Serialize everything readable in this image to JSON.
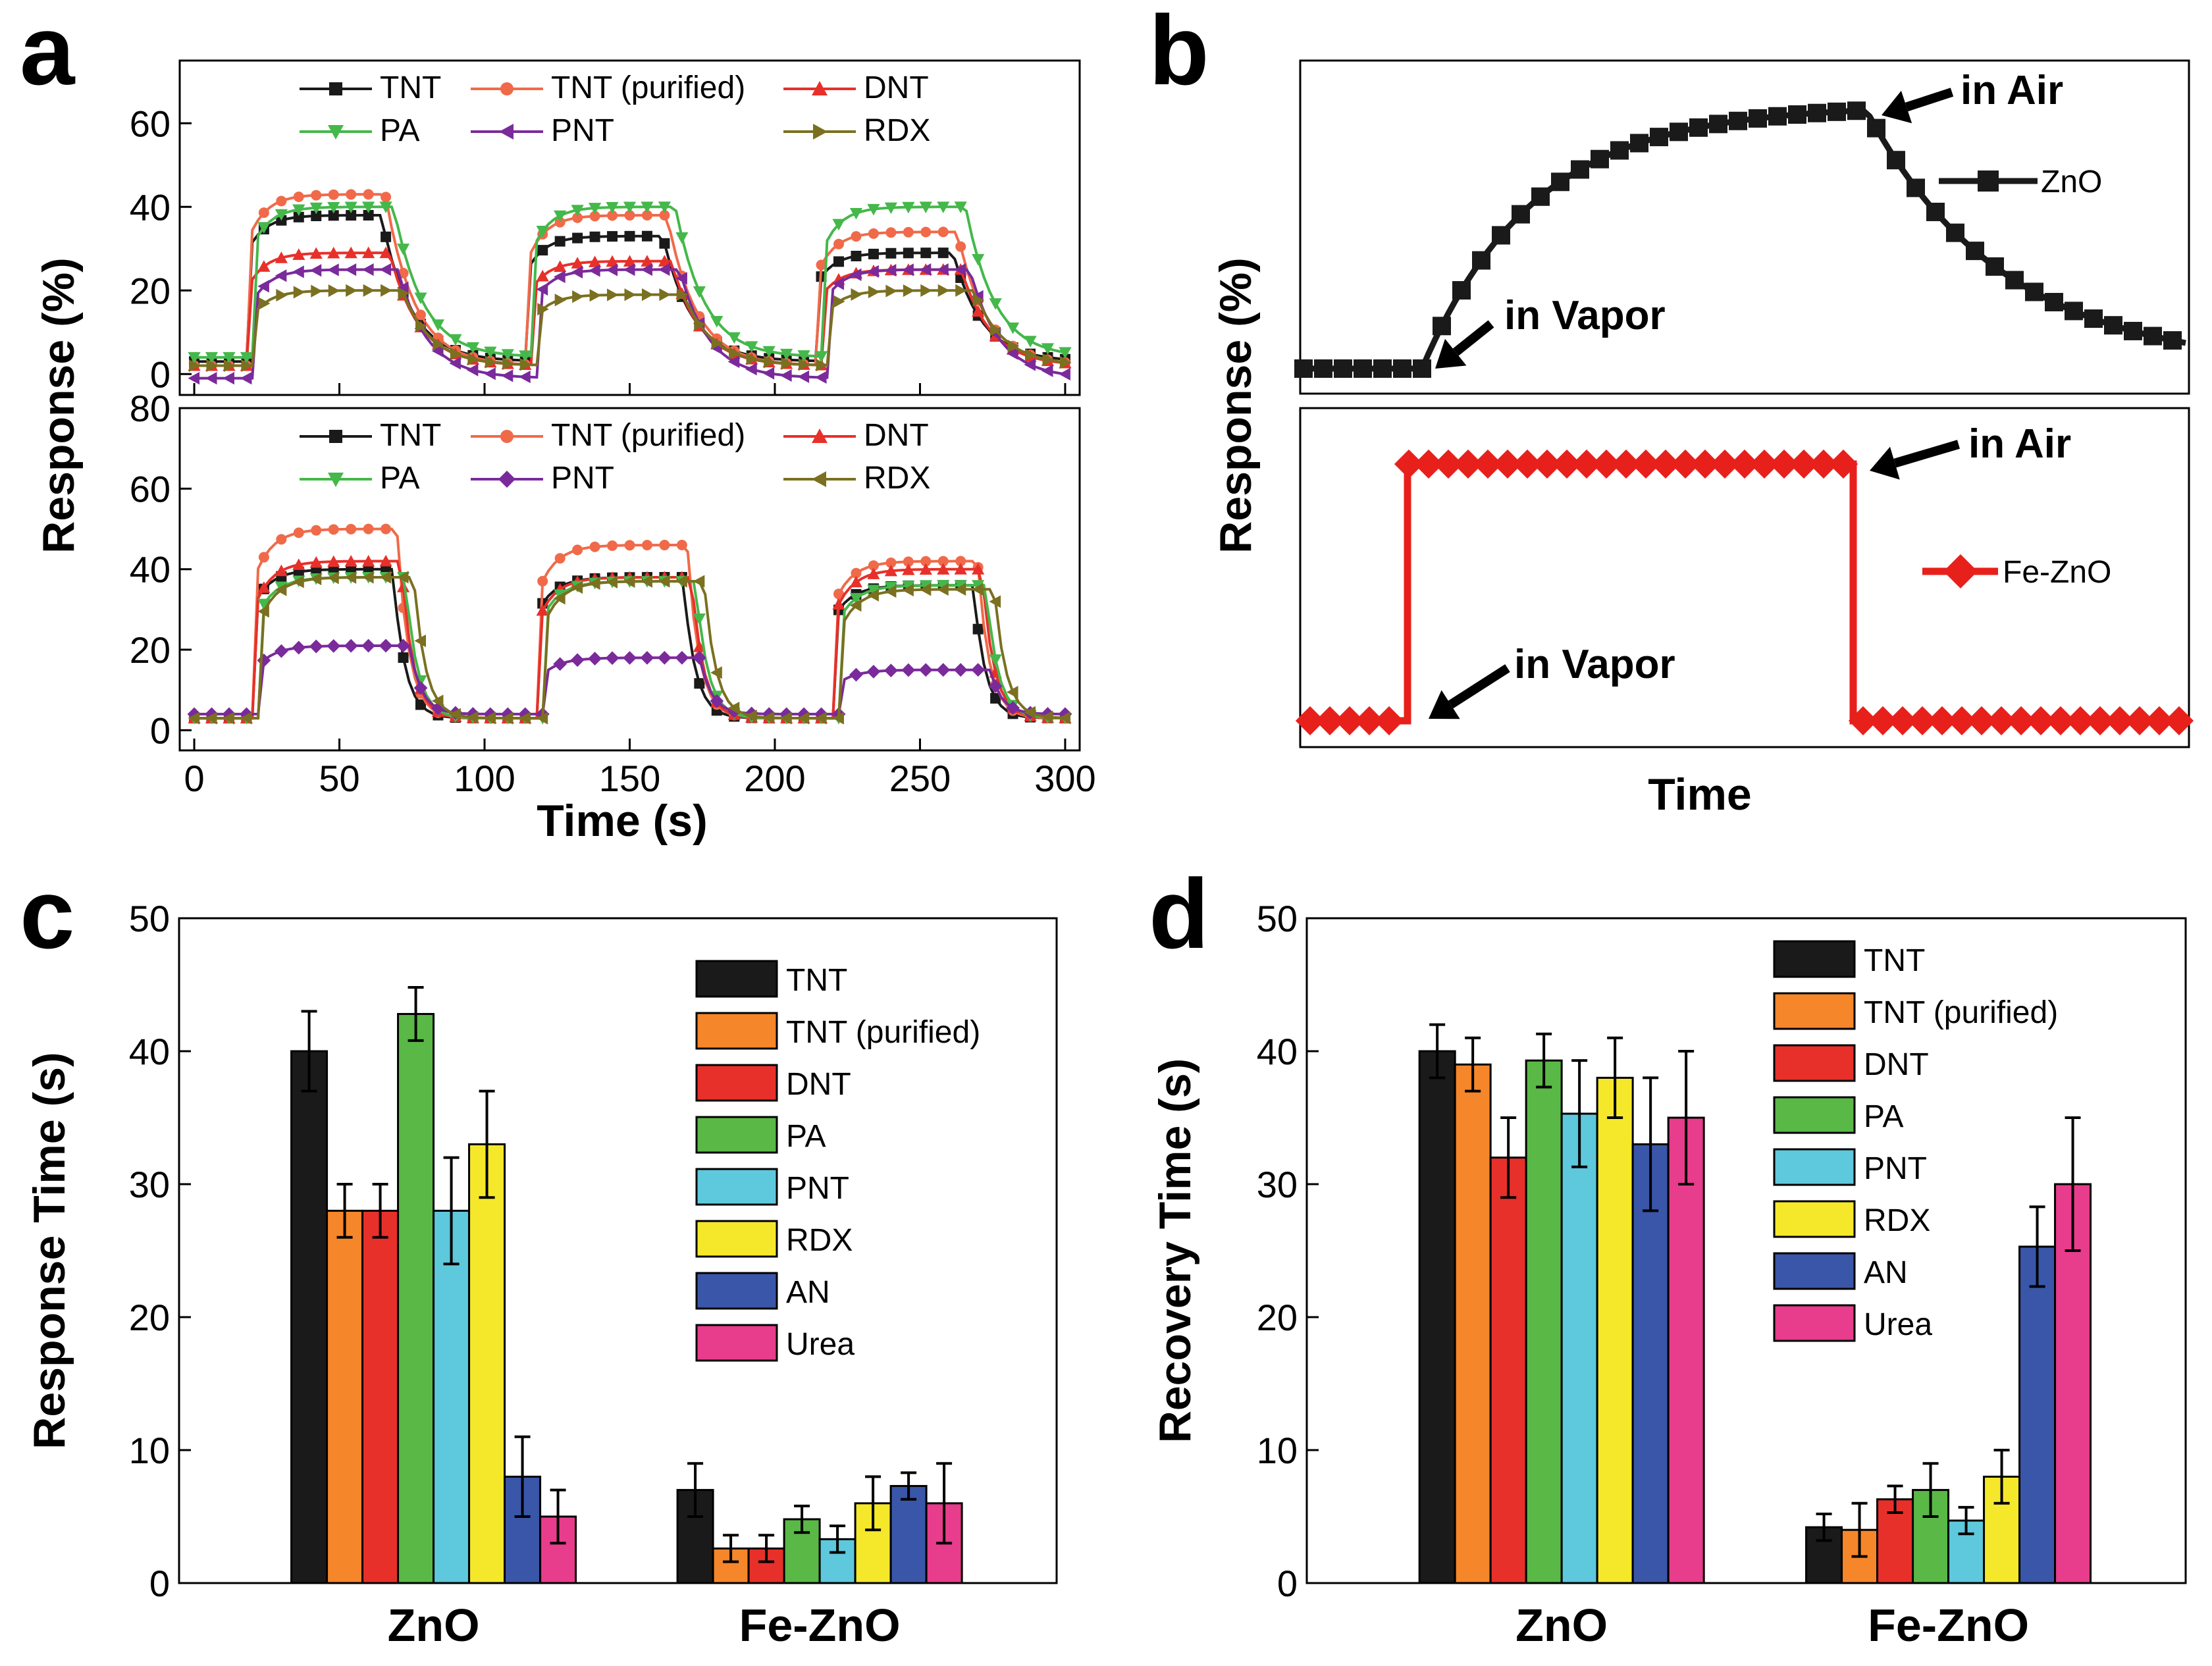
{
  "chart_data": [
    {
      "panel": "a",
      "type": "line",
      "subplot": "top",
      "xlabel": "Time (s)",
      "ylabel": "Response (%)",
      "xlim": [
        -5,
        305
      ],
      "ylim": [
        -5,
        75
      ],
      "yticks": [
        0,
        20,
        40,
        60
      ],
      "xticks": [
        0,
        50,
        100,
        150,
        200,
        250,
        300
      ],
      "exposure_windows": [
        [
          20,
          68
        ],
        [
          117,
          165
        ],
        [
          217,
          265
        ]
      ],
      "series": [
        {
          "name": "TNT",
          "color": "#1a1a1a",
          "marker": "square",
          "baseline": 3,
          "plateaus": [
            38,
            33,
            29
          ]
        },
        {
          "name": "TNT (purified)",
          "color": "#f06a4a",
          "marker": "circle",
          "baseline": 2,
          "plateaus": [
            43,
            38,
            34
          ]
        },
        {
          "name": "DNT",
          "color": "#e8302a",
          "marker": "triangle-up",
          "baseline": 2,
          "plateaus": [
            29,
            27,
            25
          ]
        },
        {
          "name": "PA",
          "color": "#44b84a",
          "marker": "triangle-down",
          "baseline": 4,
          "plateaus": [
            40,
            40,
            40
          ]
        },
        {
          "name": "PNT",
          "color": "#7a2a9a",
          "marker": "triangle-left",
          "baseline": -1,
          "plateaus": [
            25,
            25,
            25
          ]
        },
        {
          "name": "RDX",
          "color": "#7a7020",
          "marker": "triangle-right",
          "baseline": 2,
          "plateaus": [
            20,
            19,
            20
          ]
        }
      ]
    },
    {
      "panel": "a",
      "type": "line",
      "subplot": "bottom",
      "xlabel": "Time (s)",
      "ylabel": "Response (%)",
      "xlim": [
        -5,
        305
      ],
      "ylim": [
        -5,
        80
      ],
      "yticks": [
        0,
        20,
        40,
        60,
        80
      ],
      "xticks": [
        0,
        50,
        100,
        150,
        200,
        250,
        300
      ],
      "exposure_windows": [
        [
          22,
          72
        ],
        [
          120,
          172
        ],
        [
          222,
          272
        ]
      ],
      "series": [
        {
          "name": "TNT",
          "color": "#1a1a1a",
          "marker": "square",
          "baseline": 3,
          "plateaus": [
            40,
            38,
            36
          ]
        },
        {
          "name": "TNT (purified)",
          "color": "#f06a4a",
          "marker": "circle",
          "baseline": 3,
          "plateaus": [
            50,
            46,
            42
          ]
        },
        {
          "name": "DNT",
          "color": "#e8302a",
          "marker": "triangle-up",
          "baseline": 3,
          "plateaus": [
            42,
            38,
            40
          ]
        },
        {
          "name": "PA",
          "color": "#44b84a",
          "marker": "triangle-down",
          "baseline": 3,
          "plateaus": [
            38,
            37,
            36
          ]
        },
        {
          "name": "PNT",
          "color": "#7a2a9a",
          "marker": "diamond",
          "baseline": 4,
          "plateaus": [
            21,
            18,
            15
          ]
        },
        {
          "name": "RDX",
          "color": "#7a7020",
          "marker": "triangle-left",
          "baseline": 3,
          "plateaus": [
            38,
            37,
            35
          ]
        }
      ]
    },
    {
      "panel": "b",
      "type": "line",
      "xlabel": "Time",
      "ylabel": "Response (%)",
      "series": [
        {
          "name": "ZnO",
          "color": "#1a1a1a",
          "marker": "square",
          "behavior": "gradual rise and gradual decay"
        },
        {
          "name": "Fe-ZnO",
          "color": "#e8201c",
          "marker": "diamond",
          "behavior": "abrupt rise and abrupt recovery"
        }
      ],
      "annotations": [
        "in Air",
        "in Vapor",
        "in Air",
        "in Vapor"
      ]
    },
    {
      "panel": "c",
      "type": "bar",
      "ylabel": "Response Time (s)",
      "ylim": [
        0,
        50
      ],
      "yticks": [
        0,
        10,
        20,
        30,
        40,
        50
      ],
      "categories": [
        "ZnO",
        "Fe-ZnO"
      ],
      "series": [
        {
          "name": "TNT",
          "color": "#1a1a1a",
          "values": [
            40,
            7
          ],
          "errors": [
            3,
            2
          ]
        },
        {
          "name": "TNT (purified)",
          "color": "#f5862a",
          "values": [
            28,
            2.6
          ],
          "errors": [
            2,
            1
          ]
        },
        {
          "name": "DNT",
          "color": "#e8302a",
          "values": [
            28,
            2.6
          ],
          "errors": [
            2,
            1
          ]
        },
        {
          "name": "PA",
          "color": "#5ab846",
          "values": [
            42.8,
            4.8
          ],
          "errors": [
            2,
            1
          ]
        },
        {
          "name": "PNT",
          "color": "#5ec8dc",
          "values": [
            28,
            3.3
          ],
          "errors": [
            4,
            1
          ]
        },
        {
          "name": "RDX",
          "color": "#f5e82a",
          "values": [
            33,
            6
          ],
          "errors": [
            4,
            2
          ]
        },
        {
          "name": "AN",
          "color": "#3a56a8",
          "values": [
            8,
            7.3
          ],
          "errors": [
            3,
            1
          ]
        },
        {
          "name": "Urea",
          "color": "#e83c8c",
          "values": [
            5,
            6
          ],
          "errors": [
            2,
            3
          ]
        }
      ]
    },
    {
      "panel": "d",
      "type": "bar",
      "ylabel": "Recovery Time (s)",
      "ylim": [
        0,
        50
      ],
      "yticks": [
        0,
        10,
        20,
        30,
        40,
        50
      ],
      "categories": [
        "ZnO",
        "Fe-ZnO"
      ],
      "series": [
        {
          "name": "TNT",
          "color": "#1a1a1a",
          "values": [
            40,
            4.2
          ],
          "errors": [
            2,
            1
          ]
        },
        {
          "name": "TNT (purified)",
          "color": "#f5862a",
          "values": [
            39,
            4
          ],
          "errors": [
            2,
            2
          ]
        },
        {
          "name": "DNT",
          "color": "#e8302a",
          "values": [
            32,
            6.3
          ],
          "errors": [
            3,
            1
          ]
        },
        {
          "name": "PA",
          "color": "#5ab846",
          "values": [
            39.3,
            7
          ],
          "errors": [
            2,
            2
          ]
        },
        {
          "name": "PNT",
          "color": "#5ec8dc",
          "values": [
            35.3,
            4.7
          ],
          "errors": [
            4,
            1
          ]
        },
        {
          "name": "RDX",
          "color": "#f5e82a",
          "values": [
            38,
            8
          ],
          "errors": [
            3,
            2
          ]
        },
        {
          "name": "AN",
          "color": "#3a56a8",
          "values": [
            33,
            25.3
          ],
          "errors": [
            5,
            3
          ]
        },
        {
          "name": "Urea",
          "color": "#e83c8c",
          "values": [
            35,
            30
          ],
          "errors": [
            5,
            5
          ]
        }
      ]
    }
  ]
}
